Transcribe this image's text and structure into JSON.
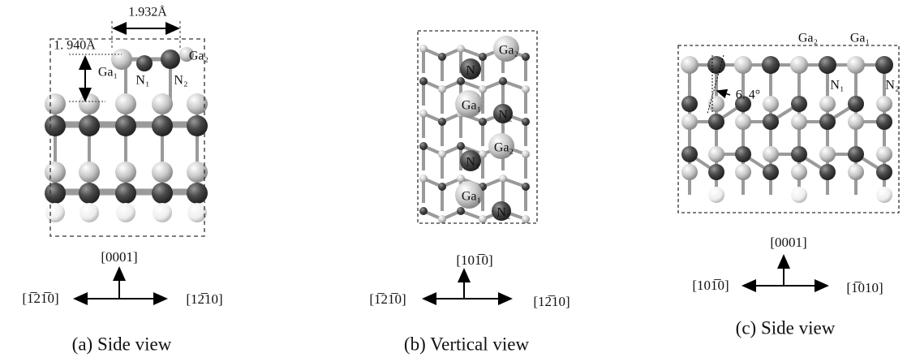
{
  "panels": [
    {
      "caption": "(a) Side view",
      "measurements": [
        "1.932Å",
        "1. 940Å"
      ],
      "labels": [
        "Ga₁",
        "N₁",
        "N₂",
        "Ga₂"
      ],
      "axes": {
        "up": "[0001]",
        "left": "[1̅21̅0]",
        "right": "[12̅10]"
      }
    },
    {
      "caption": "(b) Vertical view",
      "labels": [
        "Ga₂",
        "N₁",
        "Ga₁",
        "N₂",
        "Ga₂",
        "N₁",
        "Ga₁",
        "N₂"
      ],
      "axes": {
        "up": "[101̅0]",
        "left": "[1̅21̅0]",
        "right": "[12̅10]"
      }
    },
    {
      "caption": "(c) Side view",
      "measurements": [
        "6. 4°"
      ],
      "labels": [
        "Ga₂",
        "Ga₁",
        "N₁",
        "N₂"
      ],
      "axes": {
        "up": "[0001]",
        "left": "[101̅0]",
        "right": "[1̅010]"
      }
    }
  ]
}
